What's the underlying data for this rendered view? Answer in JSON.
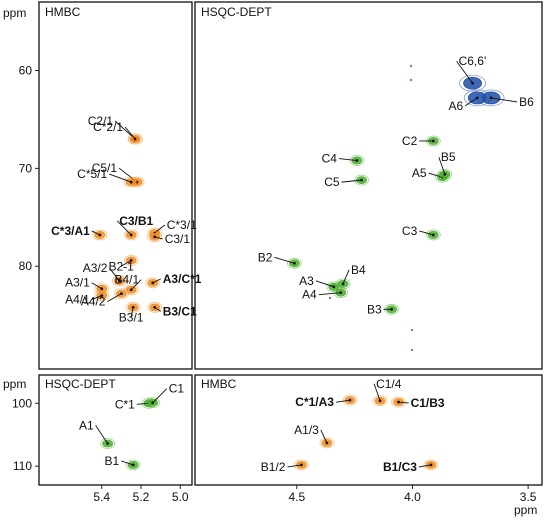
{
  "colors": {
    "hmbc": "#f28c1e",
    "hsqc_green": "#4caf2e",
    "hsqc_blue": "#1f4fa8",
    "frame": "#222222"
  },
  "axis": {
    "y_unit": "ppm",
    "x_unit": "ppm"
  },
  "panels": [
    {
      "id": "hmbc-top-left",
      "title": "HMBC",
      "show_y_ticks": true,
      "show_x_ticks": false
    },
    {
      "id": "hsqc-top-right",
      "title": "HSQC-DEPT",
      "show_y_ticks": false,
      "show_x_ticks": false
    },
    {
      "id": "hsqc-bottom-left",
      "title": "HSQC-DEPT",
      "show_y_ticks": true,
      "show_x_ticks": true
    },
    {
      "id": "hmbc-bottom-right",
      "title": "HMBC",
      "show_y_ticks": false,
      "show_x_ticks": true
    }
  ],
  "chart_data": [
    {
      "type": "scatter",
      "title": "HMBC",
      "x_unit": "ppm",
      "y_unit": "ppm",
      "x_axis": "reversed",
      "y_axis": "reversed",
      "xlim": [
        5.72,
        4.94
      ],
      "ylim": [
        53,
        90.5
      ],
      "yticks": [
        60,
        70,
        80
      ],
      "x_axis_shown": false,
      "color": "hmbc",
      "points": [
        {
          "label": "C2/1",
          "x": 5.23,
          "y": 67.0,
          "bold": false
        },
        {
          "label": "C*2/1",
          "x": 5.23,
          "y": 67.0,
          "bold": false
        },
        {
          "label": "C5/1",
          "x": 5.22,
          "y": 71.4,
          "bold": false
        },
        {
          "label": "C*5/1",
          "x": 5.25,
          "y": 71.4,
          "bold": false
        },
        {
          "label": "C*3/A1",
          "x": 5.41,
          "y": 76.8,
          "bold": true
        },
        {
          "label": "C3/B1",
          "x": 5.25,
          "y": 76.8,
          "bold": true
        },
        {
          "label": "C*3/1",
          "x": 5.13,
          "y": 76.6,
          "bold": false
        },
        {
          "label": "C3/1",
          "x": 5.13,
          "y": 77.0,
          "bold": false
        },
        {
          "label": "B2-1",
          "x": 5.25,
          "y": 79.4,
          "bold": false
        },
        {
          "label": "A3/2",
          "x": 5.31,
          "y": 81.5,
          "bold": false
        },
        {
          "label": "A3/1",
          "x": 5.4,
          "y": 82.3,
          "bold": false
        },
        {
          "label": "A4/1",
          "x": 5.4,
          "y": 83.0,
          "bold": false
        },
        {
          "label": "A4/2",
          "x": 5.3,
          "y": 82.8,
          "bold": false
        },
        {
          "label": "B4/1",
          "x": 5.25,
          "y": 82.4,
          "bold": false
        },
        {
          "label": "B3/1",
          "x": 5.24,
          "y": 84.2,
          "bold": false
        },
        {
          "label": "A3/C*1",
          "x": 5.14,
          "y": 81.7,
          "bold": true
        },
        {
          "label": "B3/C1",
          "x": 5.13,
          "y": 84.2,
          "bold": true
        }
      ]
    },
    {
      "type": "scatter",
      "title": "HSQC-DEPT",
      "x_unit": "ppm",
      "y_unit": "ppm",
      "x_axis": "reversed",
      "y_axis": "reversed",
      "xlim": [
        4.94,
        3.44
      ],
      "ylim": [
        53,
        90.5
      ],
      "y_axis_shown": false,
      "x_axis_shown": false,
      "points": [
        {
          "label": "C6,6'",
          "x": 3.74,
          "y": 61.3,
          "color": "hsqc_blue"
        },
        {
          "label": "A6",
          "x": 3.72,
          "y": 62.8,
          "color": "hsqc_blue"
        },
        {
          "label": "B6",
          "x": 3.66,
          "y": 62.8,
          "color": "hsqc_blue"
        },
        {
          "label": "C2",
          "x": 3.91,
          "y": 67.2,
          "color": "hsqc_green"
        },
        {
          "label": "C4",
          "x": 4.24,
          "y": 69.2,
          "color": "hsqc_green"
        },
        {
          "label": "C5",
          "x": 4.22,
          "y": 71.2,
          "color": "hsqc_green"
        },
        {
          "label": "A5",
          "x": 3.87,
          "y": 70.9,
          "color": "hsqc_green"
        },
        {
          "label": "B5",
          "x": 3.86,
          "y": 70.6,
          "color": "hsqc_green"
        },
        {
          "label": "C3",
          "x": 3.91,
          "y": 76.8,
          "color": "hsqc_green"
        },
        {
          "label": "B2",
          "x": 4.51,
          "y": 79.7,
          "color": "hsqc_green"
        },
        {
          "label": "B4",
          "x": 4.3,
          "y": 81.8,
          "color": "hsqc_green"
        },
        {
          "label": "A3",
          "x": 4.34,
          "y": 82.1,
          "color": "hsqc_green"
        },
        {
          "label": "A4",
          "x": 4.31,
          "y": 82.7,
          "color": "hsqc_green"
        },
        {
          "label": "B3",
          "x": 4.09,
          "y": 84.4,
          "color": "hsqc_green"
        }
      ]
    },
    {
      "type": "scatter",
      "title": "HSQC-DEPT",
      "x_unit": "ppm",
      "y_unit": "ppm",
      "x_axis": "reversed",
      "y_axis": "reversed",
      "xlim": [
        5.72,
        4.94
      ],
      "ylim": [
        95.5,
        113
      ],
      "yticks": [
        100,
        110
      ],
      "xticks": [
        5.4,
        5.2,
        5.0
      ],
      "points": [
        {
          "label": "C*1",
          "x": 5.16,
          "y": 100.0,
          "color": "hsqc_green"
        },
        {
          "label": "C1",
          "x": 5.14,
          "y": 99.9,
          "color": "hsqc_green"
        },
        {
          "label": "A1",
          "x": 5.37,
          "y": 106.4,
          "color": "hsqc_green"
        },
        {
          "label": "B1",
          "x": 5.24,
          "y": 109.8,
          "color": "hsqc_green"
        }
      ]
    },
    {
      "type": "scatter",
      "title": "HMBC",
      "x_unit": "ppm",
      "y_unit": "ppm",
      "x_axis": "reversed",
      "y_axis": "reversed",
      "xlim": [
        4.94,
        3.44
      ],
      "ylim": [
        95.5,
        113
      ],
      "xticks": [
        4.5,
        4.0,
        3.5
      ],
      "y_axis_shown": false,
      "color": "hmbc",
      "points": [
        {
          "label": "C*1/A3",
          "x": 4.27,
          "y": 99.5,
          "bold": true
        },
        {
          "label": "C1/4",
          "x": 4.14,
          "y": 99.6,
          "bold": false
        },
        {
          "label": "C1/B3",
          "x": 4.06,
          "y": 99.8,
          "bold": true
        },
        {
          "label": "A1/3",
          "x": 4.37,
          "y": 106.3,
          "bold": false
        },
        {
          "label": "B1/2",
          "x": 4.48,
          "y": 109.8,
          "bold": false
        },
        {
          "label": "B1/C3",
          "x": 3.92,
          "y": 109.8,
          "bold": true
        }
      ]
    }
  ]
}
